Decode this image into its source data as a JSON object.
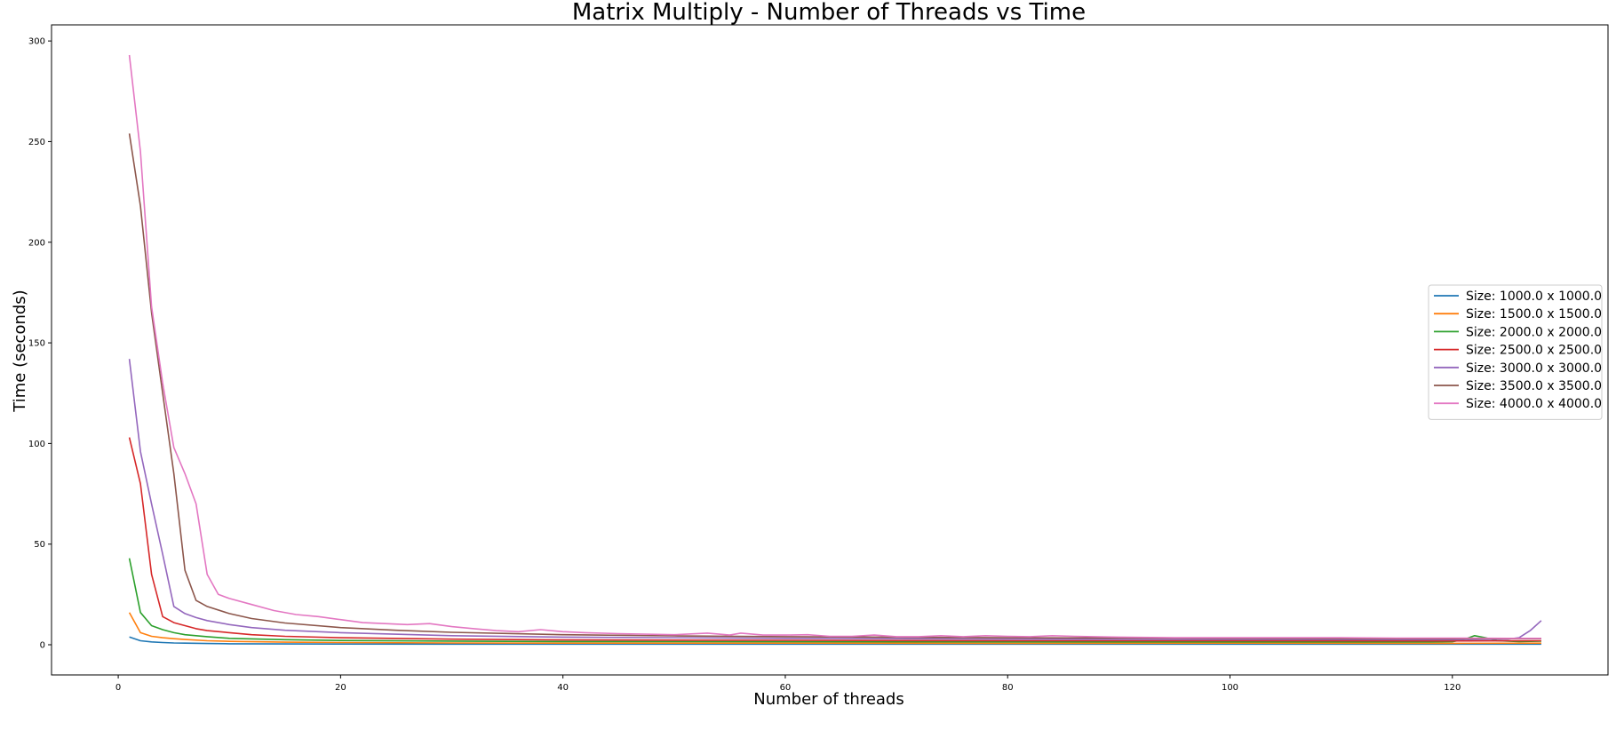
{
  "chart_data": {
    "type": "line",
    "title": "Matrix Multiply - Number of Threads vs Time",
    "xlabel": "Number of threads",
    "ylabel": "Time (seconds)",
    "xlim": [
      -6,
      134
    ],
    "ylim": [
      -15,
      308
    ],
    "xticks": [
      0,
      20,
      40,
      60,
      80,
      100,
      120
    ],
    "yticks": [
      0,
      50,
      100,
      150,
      200,
      250,
      300
    ],
    "grid": false,
    "legend_position": "center-right",
    "series": [
      {
        "name": "Size: 1000.0 x 1000.0",
        "color": "#1f77b4",
        "points": [
          [
            1,
            3.9
          ],
          [
            2,
            2.0
          ],
          [
            3,
            1.4
          ],
          [
            4,
            1.1
          ],
          [
            5,
            0.9
          ],
          [
            6,
            0.8
          ],
          [
            8,
            0.6
          ],
          [
            10,
            0.5
          ],
          [
            15,
            0.4
          ],
          [
            20,
            0.35
          ],
          [
            30,
            0.3
          ],
          [
            40,
            0.3
          ],
          [
            60,
            0.3
          ],
          [
            80,
            0.3
          ],
          [
            100,
            0.3
          ],
          [
            120,
            0.3
          ],
          [
            128,
            0.3
          ]
        ]
      },
      {
        "name": "Size: 1500.0 x 1500.0",
        "color": "#ff7f0e",
        "points": [
          [
            1,
            16
          ],
          [
            2,
            6
          ],
          [
            3,
            4.2
          ],
          [
            4,
            3.5
          ],
          [
            5,
            3
          ],
          [
            6,
            2.6
          ],
          [
            8,
            2.0
          ],
          [
            10,
            1.7
          ],
          [
            15,
            1.3
          ],
          [
            20,
            1.1
          ],
          [
            30,
            0.9
          ],
          [
            40,
            0.8
          ],
          [
            60,
            0.8
          ],
          [
            80,
            0.7
          ],
          [
            100,
            0.8
          ],
          [
            120,
            0.7
          ],
          [
            128,
            0.8
          ]
        ]
      },
      {
        "name": "Size: 2000.0 x 2000.0",
        "color": "#2ca02c",
        "points": [
          [
            1,
            43
          ],
          [
            2,
            16
          ],
          [
            3,
            9.5
          ],
          [
            4,
            7.5
          ],
          [
            5,
            6
          ],
          [
            6,
            5
          ],
          [
            8,
            4
          ],
          [
            10,
            3.2
          ],
          [
            15,
            2.5
          ],
          [
            20,
            2.1
          ],
          [
            30,
            1.8
          ],
          [
            40,
            1.6
          ],
          [
            60,
            1.5
          ],
          [
            80,
            1.4
          ],
          [
            100,
            1.4
          ],
          [
            118,
            1.4
          ],
          [
            120,
            1.5
          ],
          [
            121,
            2.5
          ],
          [
            122,
            4.5
          ],
          [
            123,
            3.5
          ],
          [
            124,
            2
          ],
          [
            126,
            1.6
          ],
          [
            128,
            1.8
          ]
        ]
      },
      {
        "name": "Size: 2500.0 x 2500.0",
        "color": "#d62728",
        "points": [
          [
            1,
            103
          ],
          [
            2,
            80
          ],
          [
            3,
            35
          ],
          [
            4,
            14
          ],
          [
            5,
            11
          ],
          [
            6,
            9.5
          ],
          [
            7,
            8
          ],
          [
            8,
            7
          ],
          [
            10,
            6
          ],
          [
            12,
            5
          ],
          [
            15,
            4.2
          ],
          [
            20,
            3.5
          ],
          [
            30,
            2.8
          ],
          [
            40,
            2.4
          ],
          [
            60,
            2.2
          ],
          [
            80,
            2
          ],
          [
            100,
            2
          ],
          [
            120,
            1.9
          ],
          [
            128,
            2
          ]
        ]
      },
      {
        "name": "Size: 3000.0 x 3000.0",
        "color": "#9467bd",
        "points": [
          [
            1,
            142
          ],
          [
            2,
            96
          ],
          [
            3,
            70
          ],
          [
            4,
            45
          ],
          [
            5,
            19
          ],
          [
            6,
            15.5
          ],
          [
            7,
            13.5
          ],
          [
            8,
            12
          ],
          [
            10,
            10
          ],
          [
            12,
            8.5
          ],
          [
            15,
            7.2
          ],
          [
            20,
            6
          ],
          [
            30,
            4.5
          ],
          [
            40,
            3.8
          ],
          [
            60,
            3.2
          ],
          [
            80,
            2.8
          ],
          [
            100,
            2.6
          ],
          [
            120,
            2.5
          ],
          [
            125,
            2.8
          ],
          [
            126,
            3.5
          ],
          [
            127,
            7
          ],
          [
            128,
            12
          ]
        ]
      },
      {
        "name": "Size: 3500.0 x 3500.0",
        "color": "#8c564b",
        "points": [
          [
            1,
            254
          ],
          [
            2,
            218
          ],
          [
            3,
            165
          ],
          [
            4,
            125
          ],
          [
            5,
            85
          ],
          [
            6,
            37
          ],
          [
            7,
            22
          ],
          [
            8,
            19
          ],
          [
            10,
            15.5
          ],
          [
            12,
            13
          ],
          [
            15,
            10.8
          ],
          [
            20,
            8.5
          ],
          [
            25,
            7.2
          ],
          [
            30,
            6.2
          ],
          [
            40,
            5
          ],
          [
            50,
            4.4
          ],
          [
            60,
            4
          ],
          [
            80,
            3.5
          ],
          [
            100,
            3.2
          ],
          [
            120,
            3
          ],
          [
            128,
            3
          ]
        ]
      },
      {
        "name": "Size: 4000.0 x 4000.0",
        "color": "#e377c2",
        "points": [
          [
            1,
            293
          ],
          [
            2,
            245
          ],
          [
            3,
            168
          ],
          [
            4,
            130
          ],
          [
            5,
            98
          ],
          [
            6,
            85
          ],
          [
            7,
            70
          ],
          [
            8,
            35
          ],
          [
            9,
            25
          ],
          [
            10,
            23
          ],
          [
            12,
            20
          ],
          [
            14,
            17
          ],
          [
            16,
            15
          ],
          [
            18,
            14
          ],
          [
            20,
            12.5
          ],
          [
            22,
            11
          ],
          [
            24,
            10.5
          ],
          [
            26,
            10
          ],
          [
            28,
            10.5
          ],
          [
            30,
            9
          ],
          [
            32,
            8
          ],
          [
            34,
            7
          ],
          [
            36,
            6.5
          ],
          [
            38,
            7.5
          ],
          [
            40,
            6.5
          ],
          [
            42,
            6
          ],
          [
            45,
            5.5
          ],
          [
            50,
            5
          ],
          [
            53,
            5.8
          ],
          [
            55,
            4.8
          ],
          [
            56,
            5.8
          ],
          [
            58,
            4.8
          ],
          [
            60,
            4.8
          ],
          [
            62,
            5
          ],
          [
            64,
            4.2
          ],
          [
            66,
            4.2
          ],
          [
            68,
            4.8
          ],
          [
            70,
            4
          ],
          [
            72,
            4
          ],
          [
            74,
            4.5
          ],
          [
            76,
            4
          ],
          [
            78,
            4.5
          ],
          [
            80,
            4.2
          ],
          [
            82,
            4
          ],
          [
            84,
            4.5
          ],
          [
            86,
            4.2
          ],
          [
            90,
            3.8
          ],
          [
            95,
            3.5
          ],
          [
            100,
            3.5
          ],
          [
            105,
            3.5
          ],
          [
            110,
            3.5
          ],
          [
            115,
            3.3
          ],
          [
            120,
            3.3
          ],
          [
            125,
            3.2
          ],
          [
            128,
            3.2
          ]
        ]
      }
    ]
  }
}
